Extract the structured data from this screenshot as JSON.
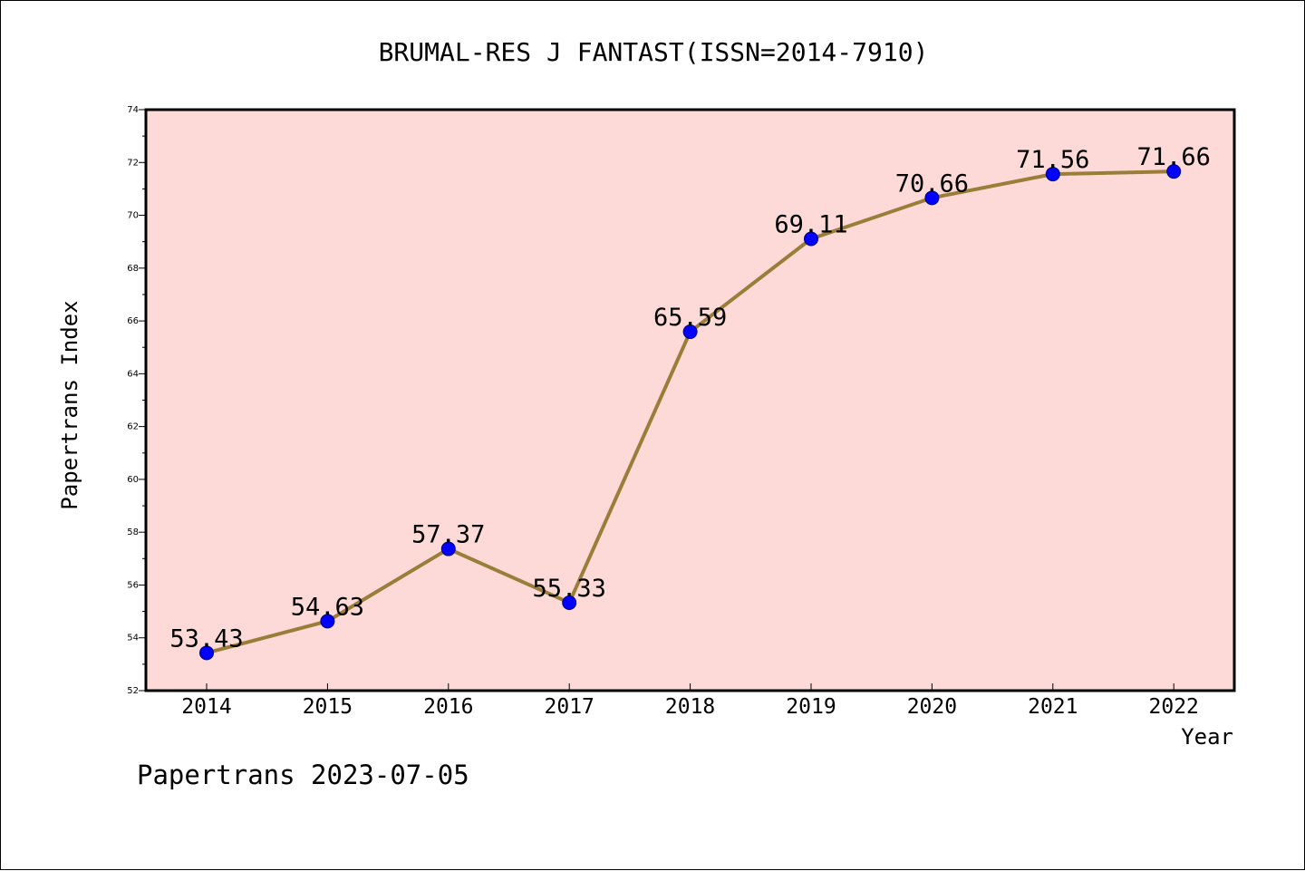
{
  "colors": {
    "plot_background": "#fddad7",
    "line": "#9b7d3a",
    "marker": "#0000ff",
    "axis": "#000000"
  },
  "footer": "Papertrans 2023-07-05",
  "chart_data": {
    "type": "line",
    "title": "BRUMAL-RES J FANTAST(ISSN=2014-7910)",
    "xlabel": "Year",
    "ylabel": "Papertrans Index",
    "categories": [
      "2014",
      "2015",
      "2016",
      "2017",
      "2018",
      "2019",
      "2020",
      "2021",
      "2022"
    ],
    "values": [
      53.43,
      54.63,
      57.37,
      55.33,
      65.59,
      69.11,
      70.66,
      71.56,
      71.66
    ],
    "data_labels": [
      "53.43",
      "54.63",
      "57.37",
      "55.33",
      "65.59",
      "69.11",
      "70.66",
      "71.56",
      "71.66"
    ],
    "ylim": [
      52,
      74
    ],
    "yticks": [
      "52",
      "54",
      "56",
      "58",
      "60",
      "62",
      "64",
      "66",
      "68",
      "70",
      "72",
      "74"
    ],
    "grid": false,
    "legend": "none"
  }
}
